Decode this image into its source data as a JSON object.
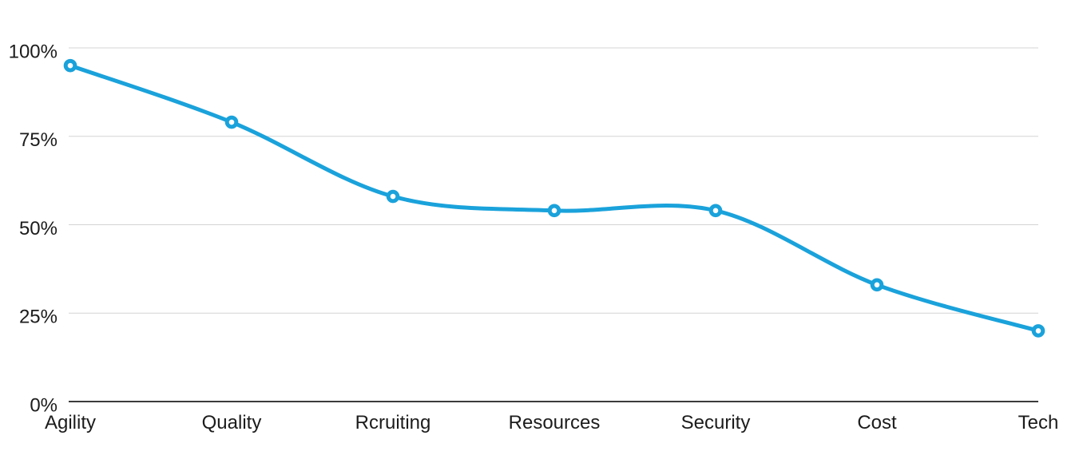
{
  "chart_data": {
    "type": "line",
    "title": "",
    "xlabel": "",
    "ylabel": "",
    "categories": [
      "Agility",
      "Quality",
      "Rcruiting",
      "Resources",
      "Security",
      "Cost",
      "Tech"
    ],
    "values": [
      95,
      79,
      58,
      54,
      54,
      33,
      20
    ],
    "ylim": [
      0,
      100
    ],
    "y_tick_values": [
      0,
      25,
      50,
      75,
      100
    ],
    "y_tick_labels": [
      "0%",
      "25%",
      "50%",
      "75%",
      "100%"
    ],
    "grid": true,
    "legend_position": "none",
    "smooth": true,
    "colors": {
      "line": "#1aa2db",
      "marker_fill": "#ffffff",
      "gridline": "#d4d4d4",
      "axis_line": "#3b3b3b",
      "label_text": "#1c1c1c"
    }
  }
}
